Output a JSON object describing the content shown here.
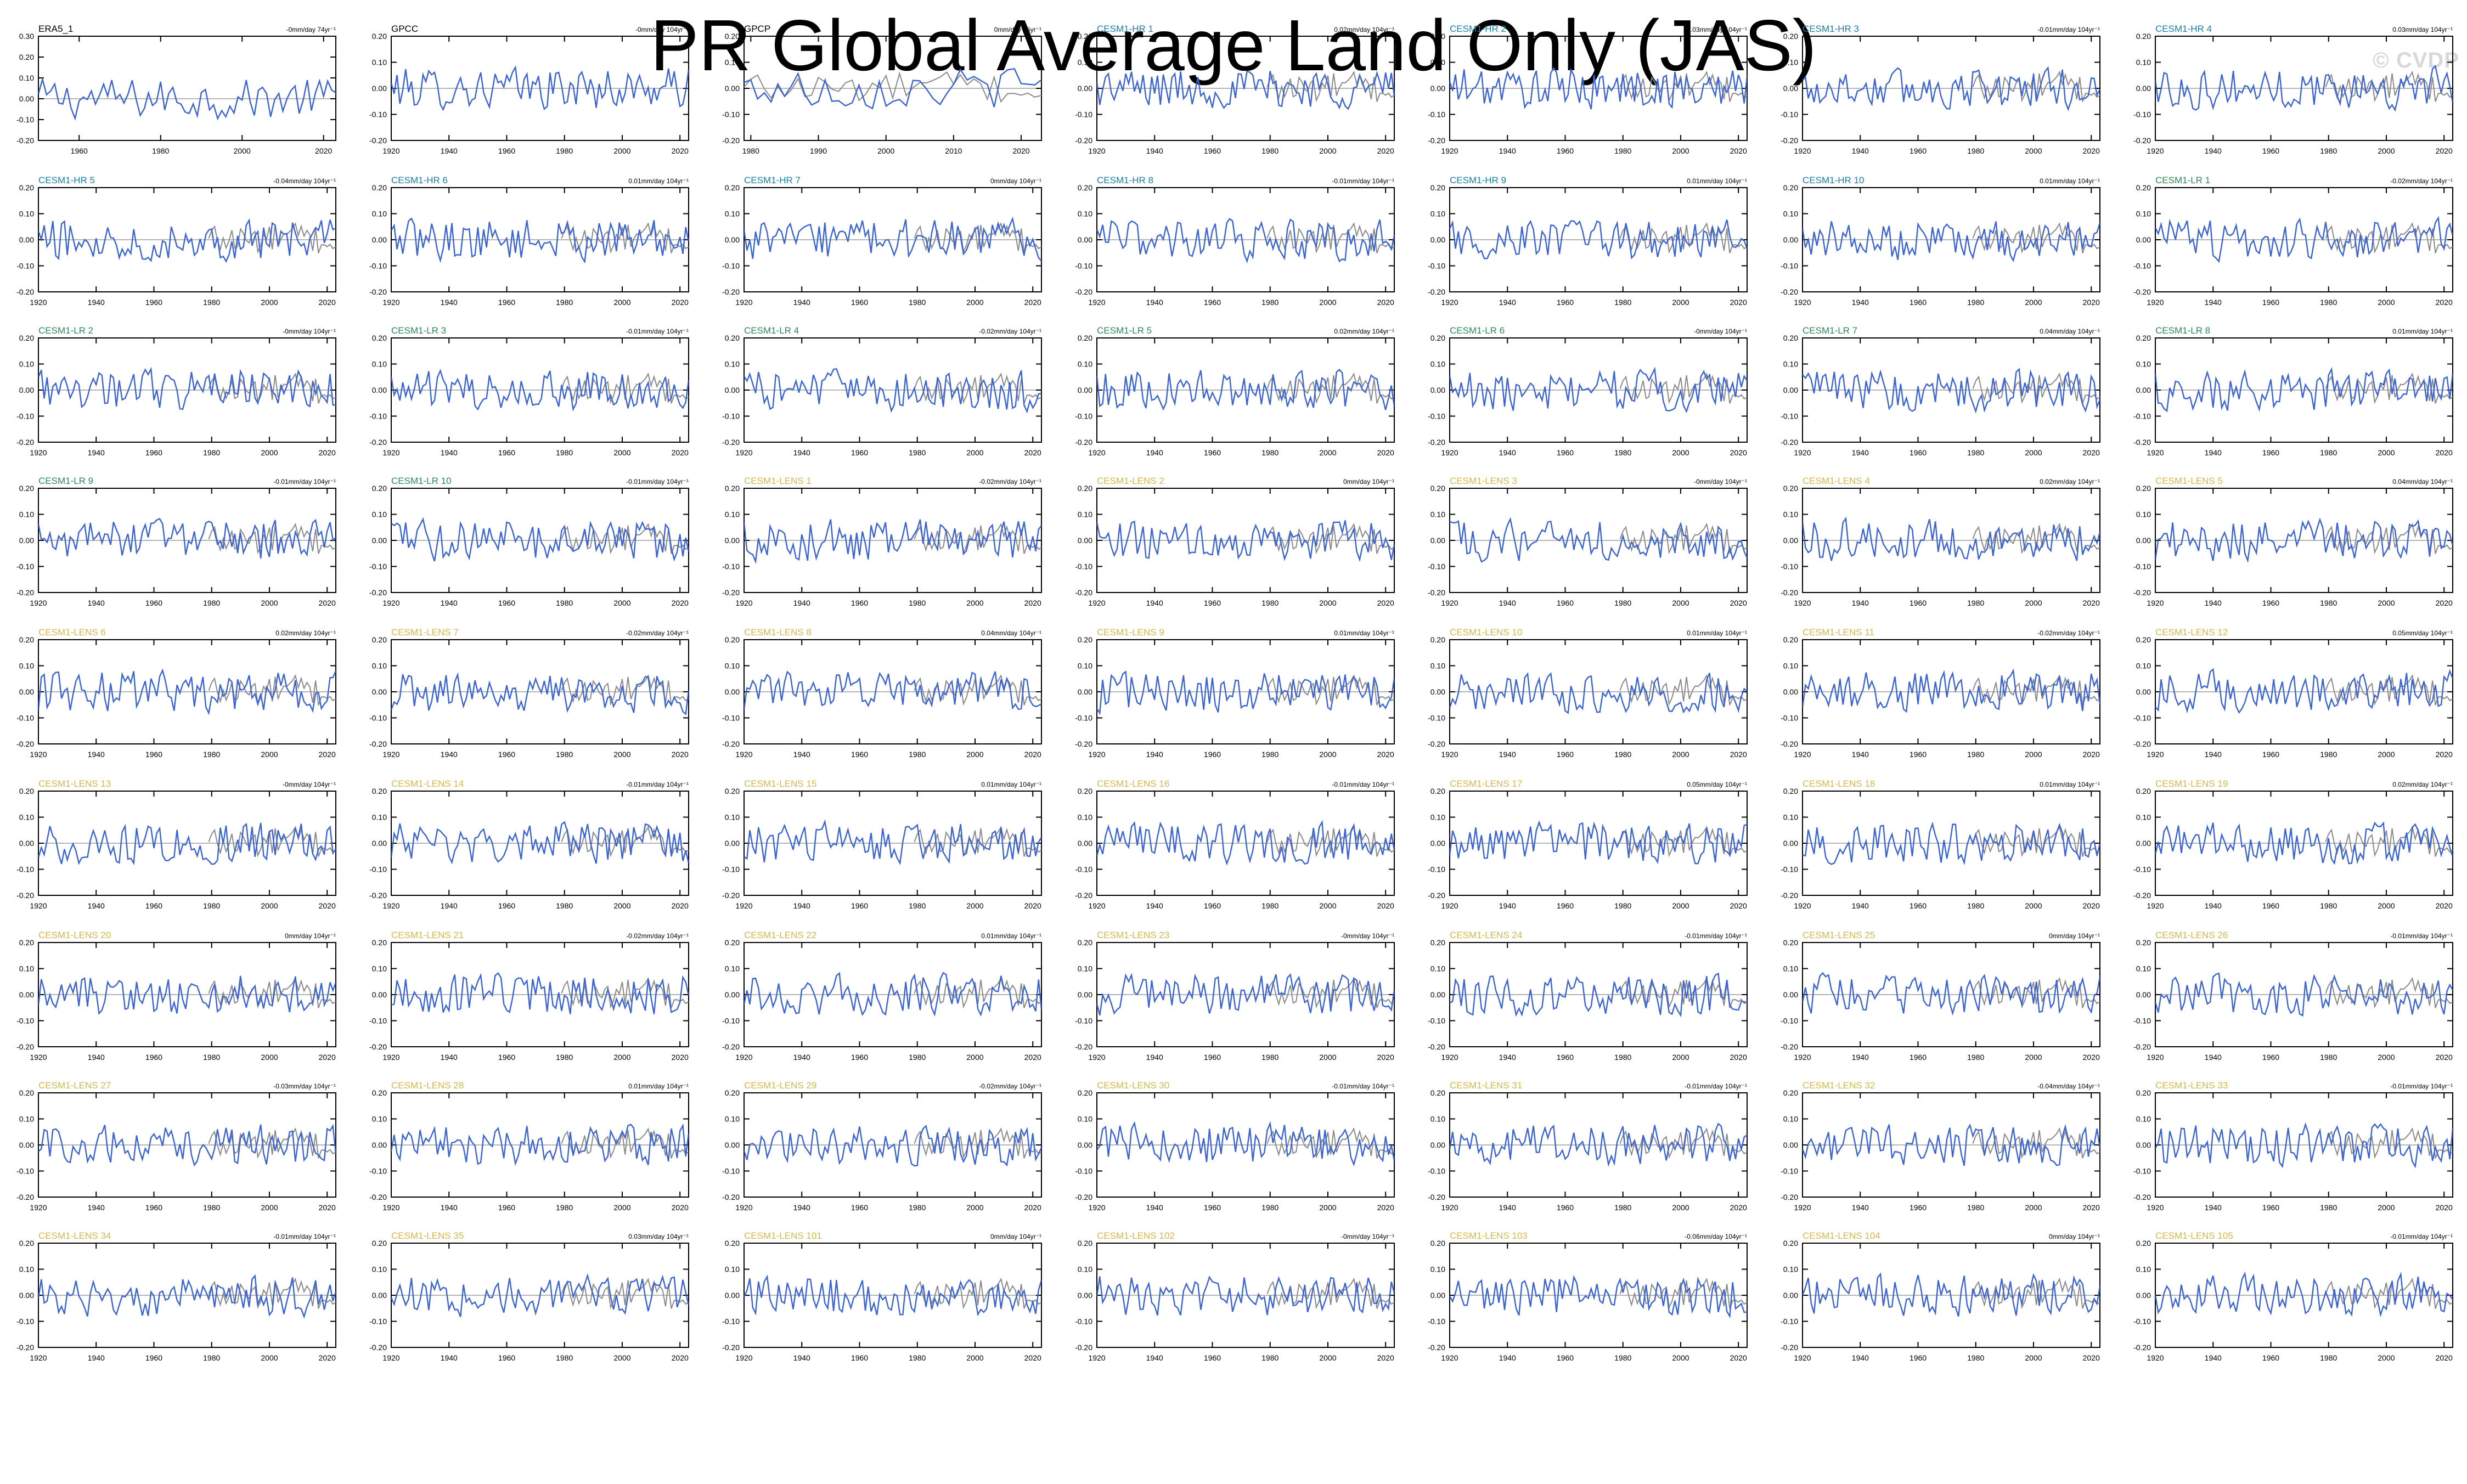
{
  "title": "PR Global Average Land Only (JAS)",
  "watermark": "© CVDP",
  "colors": {
    "obs": "#000000",
    "hr": "#1a7fa8",
    "lr": "#2e8b57",
    "lens": "#d4b84a",
    "model_line": "#3a63d6",
    "obs_line": "#8a8a8a",
    "axis": "#000000"
  },
  "chart_data": [
    {
      "type": "line",
      "label": "ERA5_1",
      "group": "obs",
      "trend": "-0mm/day 74yr⁻¹",
      "x_range": [
        1950,
        2023
      ],
      "xticks": [
        1960,
        1980,
        2000,
        2020
      ],
      "ylim": [
        -0.2,
        0.3
      ],
      "yticks": [
        "0.30",
        "0.20",
        "0.10",
        "0.00",
        "-0.10",
        "-0.20"
      ],
      "overlay": false
    },
    {
      "type": "line",
      "label": "GPCC",
      "group": "obs",
      "trend": "-0mm/day 104yr⁻¹",
      "x_range": [
        1920,
        2023
      ],
      "xticks": [
        1920,
        1940,
        1960,
        1980,
        2000,
        2020
      ],
      "ylim": [
        -0.2,
        0.2
      ],
      "yticks": [
        "0.20",
        "0.10",
        "0.00",
        "-0.10",
        "-0.20"
      ],
      "overlay": false
    },
    {
      "type": "line",
      "label": "GPCP",
      "group": "obs",
      "trend": "0mm/day 45yr⁻¹",
      "x_range": [
        1979,
        2023
      ],
      "xticks": [
        1980,
        1990,
        2000,
        2010,
        2020
      ],
      "ylim": [
        -0.2,
        0.2
      ],
      "yticks": [
        "0.20",
        "0.10",
        "0.00",
        "-0.10",
        "-0.20"
      ],
      "overlay": true
    },
    {
      "type": "line",
      "label": "CESM1-HR 1",
      "group": "hr",
      "trend": "0.02mm/day 104yr⁻¹",
      "overlay": true
    },
    {
      "type": "line",
      "label": "CESM1-HR 2",
      "group": "hr",
      "trend": "-0.03mm/day 104yr⁻¹",
      "overlay": true
    },
    {
      "type": "line",
      "label": "CESM1-HR 3",
      "group": "hr",
      "trend": "-0.01mm/day 104yr⁻¹",
      "overlay": true
    },
    {
      "type": "line",
      "label": "CESM1-HR 4",
      "group": "hr",
      "trend": "0.03mm/day 104yr⁻¹",
      "overlay": true
    },
    {
      "type": "line",
      "label": "CESM1-HR 5",
      "group": "hr",
      "trend": "-0.04mm/day 104yr⁻¹",
      "overlay": true
    },
    {
      "type": "line",
      "label": "CESM1-HR 6",
      "group": "hr",
      "trend": "0.01mm/day 104yr⁻¹",
      "overlay": true
    },
    {
      "type": "line",
      "label": "CESM1-HR 7",
      "group": "hr",
      "trend": "0mm/day 104yr⁻¹",
      "overlay": true
    },
    {
      "type": "line",
      "label": "CESM1-HR 8",
      "group": "hr",
      "trend": "-0.01mm/day 104yr⁻¹",
      "overlay": true
    },
    {
      "type": "line",
      "label": "CESM1-HR 9",
      "group": "hr",
      "trend": "0.01mm/day 104yr⁻¹",
      "overlay": true
    },
    {
      "type": "line",
      "label": "CESM1-HR 10",
      "group": "hr",
      "trend": "0.01mm/day 104yr⁻¹",
      "overlay": true
    },
    {
      "type": "line",
      "label": "CESM1-LR 1",
      "group": "lr",
      "trend": "-0.02mm/day 104yr⁻¹",
      "overlay": true
    },
    {
      "type": "line",
      "label": "CESM1-LR 2",
      "group": "lr",
      "trend": "-0mm/day 104yr⁻¹",
      "overlay": true
    },
    {
      "type": "line",
      "label": "CESM1-LR 3",
      "group": "lr",
      "trend": "-0.01mm/day 104yr⁻¹",
      "overlay": true
    },
    {
      "type": "line",
      "label": "CESM1-LR 4",
      "group": "lr",
      "trend": "-0.02mm/day 104yr⁻¹",
      "overlay": true
    },
    {
      "type": "line",
      "label": "CESM1-LR 5",
      "group": "lr",
      "trend": "0.02mm/day 104yr⁻¹",
      "overlay": true
    },
    {
      "type": "line",
      "label": "CESM1-LR 6",
      "group": "lr",
      "trend": "-0mm/day 104yr⁻¹",
      "overlay": true
    },
    {
      "type": "line",
      "label": "CESM1-LR 7",
      "group": "lr",
      "trend": "0.04mm/day 104yr⁻¹",
      "overlay": true
    },
    {
      "type": "line",
      "label": "CESM1-LR 8",
      "group": "lr",
      "trend": "0.01mm/day 104yr⁻¹",
      "overlay": true
    },
    {
      "type": "line",
      "label": "CESM1-LR 9",
      "group": "lr",
      "trend": "-0.01mm/day 104yr⁻¹",
      "overlay": true
    },
    {
      "type": "line",
      "label": "CESM1-LR 10",
      "group": "lr",
      "trend": "-0.01mm/day 104yr⁻¹",
      "overlay": true
    },
    {
      "type": "line",
      "label": "CESM1-LENS 1",
      "group": "lens",
      "trend": "-0.02mm/day 104yr⁻¹",
      "overlay": true
    },
    {
      "type": "line",
      "label": "CESM1-LENS 2",
      "group": "lens",
      "trend": "0mm/day 104yr⁻¹",
      "overlay": true
    },
    {
      "type": "line",
      "label": "CESM1-LENS 3",
      "group": "lens",
      "trend": "-0mm/day 104yr⁻¹",
      "overlay": true
    },
    {
      "type": "line",
      "label": "CESM1-LENS 4",
      "group": "lens",
      "trend": "0.02mm/day 104yr⁻¹",
      "overlay": true
    },
    {
      "type": "line",
      "label": "CESM1-LENS 5",
      "group": "lens",
      "trend": "0.04mm/day 104yr⁻¹",
      "overlay": true
    },
    {
      "type": "line",
      "label": "CESM1-LENS 6",
      "group": "lens",
      "trend": "0.02mm/day 104yr⁻¹",
      "overlay": true
    },
    {
      "type": "line",
      "label": "CESM1-LENS 7",
      "group": "lens",
      "trend": "-0.02mm/day 104yr⁻¹",
      "overlay": true
    },
    {
      "type": "line",
      "label": "CESM1-LENS 8",
      "group": "lens",
      "trend": "0.04mm/day 104yr⁻¹",
      "overlay": true
    },
    {
      "type": "line",
      "label": "CESM1-LENS 9",
      "group": "lens",
      "trend": "0.01mm/day 104yr⁻¹",
      "overlay": true
    },
    {
      "type": "line",
      "label": "CESM1-LENS 10",
      "group": "lens",
      "trend": "0.01mm/day 104yr⁻¹",
      "overlay": true
    },
    {
      "type": "line",
      "label": "CESM1-LENS 11",
      "group": "lens",
      "trend": "-0.02mm/day 104yr⁻¹",
      "overlay": true
    },
    {
      "type": "line",
      "label": "CESM1-LENS 12",
      "group": "lens",
      "trend": "0.05mm/day 104yr⁻¹",
      "overlay": true
    },
    {
      "type": "line",
      "label": "CESM1-LENS 13",
      "group": "lens",
      "trend": "-0mm/day 104yr⁻¹",
      "overlay": true
    },
    {
      "type": "line",
      "label": "CESM1-LENS 14",
      "group": "lens",
      "trend": "-0.01mm/day 104yr⁻¹",
      "overlay": true
    },
    {
      "type": "line",
      "label": "CESM1-LENS 15",
      "group": "lens",
      "trend": "0.01mm/day 104yr⁻¹",
      "overlay": true
    },
    {
      "type": "line",
      "label": "CESM1-LENS 16",
      "group": "lens",
      "trend": "-0.01mm/day 104yr⁻¹",
      "overlay": true
    },
    {
      "type": "line",
      "label": "CESM1-LENS 17",
      "group": "lens",
      "trend": "0.05mm/day 104yr⁻¹",
      "overlay": true
    },
    {
      "type": "line",
      "label": "CESM1-LENS 18",
      "group": "lens",
      "trend": "0.01mm/day 104yr⁻¹",
      "overlay": true
    },
    {
      "type": "line",
      "label": "CESM1-LENS 19",
      "group": "lens",
      "trend": "0.02mm/day 104yr⁻¹",
      "overlay": true
    },
    {
      "type": "line",
      "label": "CESM1-LENS 20",
      "group": "lens",
      "trend": "0mm/day 104yr⁻¹",
      "overlay": true
    },
    {
      "type": "line",
      "label": "CESM1-LENS 21",
      "group": "lens",
      "trend": "-0.02mm/day 104yr⁻¹",
      "overlay": true
    },
    {
      "type": "line",
      "label": "CESM1-LENS 22",
      "group": "lens",
      "trend": "0.01mm/day 104yr⁻¹",
      "overlay": true
    },
    {
      "type": "line",
      "label": "CESM1-LENS 23",
      "group": "lens",
      "trend": "-0mm/day 104yr⁻¹",
      "overlay": true
    },
    {
      "type": "line",
      "label": "CESM1-LENS 24",
      "group": "lens",
      "trend": "-0.01mm/day 104yr⁻¹",
      "overlay": true
    },
    {
      "type": "line",
      "label": "CESM1-LENS 25",
      "group": "lens",
      "trend": "0mm/day 104yr⁻¹",
      "overlay": true
    },
    {
      "type": "line",
      "label": "CESM1-LENS 26",
      "group": "lens",
      "trend": "-0.01mm/day 104yr⁻¹",
      "overlay": true
    },
    {
      "type": "line",
      "label": "CESM1-LENS 27",
      "group": "lens",
      "trend": "-0.03mm/day 104yr⁻¹",
      "overlay": true
    },
    {
      "type": "line",
      "label": "CESM1-LENS 28",
      "group": "lens",
      "trend": "0.01mm/day 104yr⁻¹",
      "overlay": true
    },
    {
      "type": "line",
      "label": "CESM1-LENS 29",
      "group": "lens",
      "trend": "-0.02mm/day 104yr⁻¹",
      "overlay": true
    },
    {
      "type": "line",
      "label": "CESM1-LENS 30",
      "group": "lens",
      "trend": "-0.01mm/day 104yr⁻¹",
      "overlay": true
    },
    {
      "type": "line",
      "label": "CESM1-LENS 31",
      "group": "lens",
      "trend": "-0.01mm/day 104yr⁻¹",
      "overlay": true
    },
    {
      "type": "line",
      "label": "CESM1-LENS 32",
      "group": "lens",
      "trend": "-0.04mm/day 104yr⁻¹",
      "overlay": true
    },
    {
      "type": "line",
      "label": "CESM1-LENS 33",
      "group": "lens",
      "trend": "-0.01mm/day 104yr⁻¹",
      "overlay": true
    },
    {
      "type": "line",
      "label": "CESM1-LENS 34",
      "group": "lens",
      "trend": "-0.01mm/day 104yr⁻¹",
      "overlay": true
    },
    {
      "type": "line",
      "label": "CESM1-LENS 35",
      "group": "lens",
      "trend": "0.03mm/day 104yr⁻¹",
      "overlay": true
    },
    {
      "type": "line",
      "label": "CESM1-LENS 101",
      "group": "lens",
      "trend": "0mm/day 104yr⁻¹",
      "overlay": true
    },
    {
      "type": "line",
      "label": "CESM1-LENS 102",
      "group": "lens",
      "trend": "-0mm/day 104yr⁻¹",
      "overlay": true
    },
    {
      "type": "line",
      "label": "CESM1-LENS 103",
      "group": "lens",
      "trend": "-0.06mm/day 104yr⁻¹",
      "overlay": true
    },
    {
      "type": "line",
      "label": "CESM1-LENS 104",
      "group": "lens",
      "trend": "0mm/day 104yr⁻¹",
      "overlay": true
    },
    {
      "type": "line",
      "label": "CESM1-LENS 105",
      "group": "lens",
      "trend": "-0.01mm/day 104yr⁻¹",
      "overlay": true
    }
  ],
  "defaults": {
    "x_range": [
      1920,
      2023
    ],
    "xticks": [
      1920,
      1940,
      1960,
      1980,
      2000,
      2020
    ],
    "ylim": [
      -0.2,
      0.2
    ],
    "yticks": [
      "0.20",
      "0.10",
      "0.00",
      "-0.10",
      "-0.20"
    ]
  }
}
